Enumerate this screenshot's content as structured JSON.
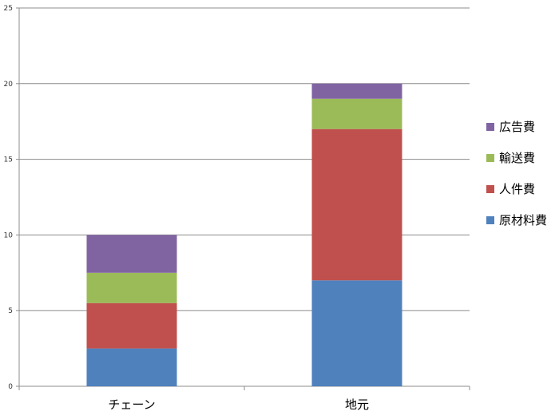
{
  "chart_data": {
    "type": "bar",
    "stacked": true,
    "categories": [
      "チェーン",
      "地元"
    ],
    "series": [
      {
        "name": "原材料費",
        "values": [
          2.5,
          7
        ],
        "color": "#4f81bd"
      },
      {
        "name": "人件費",
        "values": [
          3,
          10
        ],
        "color": "#c0504d"
      },
      {
        "name": "輸送費",
        "values": [
          2,
          2
        ],
        "color": "#9bbb59"
      },
      {
        "name": "広告費",
        "values": [
          2.5,
          1
        ],
        "color": "#8064a2"
      }
    ],
    "y_ticks": [
      0,
      5,
      10,
      15,
      20,
      25
    ],
    "ylim": [
      0,
      25
    ],
    "grid": true,
    "legend_position": "right",
    "legend_order": [
      "広告費",
      "輸送費",
      "人件費",
      "原材料費"
    ]
  }
}
